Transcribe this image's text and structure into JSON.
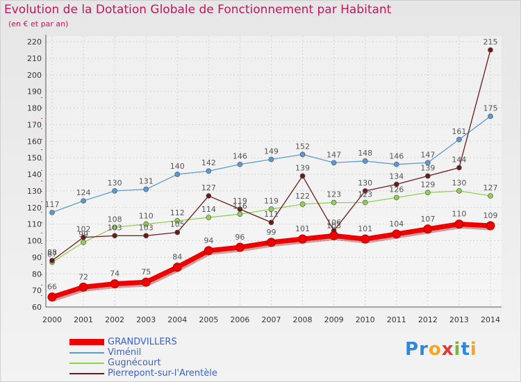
{
  "header": {
    "title": "Evolution de la Dotation Globale de Fonctionnement par Habitant",
    "subtitle": "(en € et par an)"
  },
  "brand": {
    "letters": [
      "P",
      "r",
      "o",
      "x",
      "i",
      "t",
      "i"
    ],
    "colors": [
      "#2e86de",
      "#2e86de",
      "#f5a623",
      "#e53935",
      "#7cb342",
      "#2e86de",
      "#f5a623"
    ]
  },
  "chart_data": {
    "type": "line",
    "x": [
      "2000",
      "2001",
      "2002",
      "2003",
      "2004",
      "2005",
      "2006",
      "2007",
      "2008",
      "2009",
      "2010",
      "2011",
      "2012",
      "2013",
      "2014"
    ],
    "ylim": [
      60,
      220
    ],
    "yticks": [
      60,
      70,
      80,
      90,
      100,
      110,
      120,
      130,
      140,
      150,
      160,
      170,
      180,
      190,
      200,
      210,
      220
    ],
    "grid": true,
    "legend_position": "bottom-left",
    "series": [
      {
        "name": "GRANDVILLERS",
        "color": "#ee0000",
        "thick": true,
        "values": [
          66,
          72,
          74,
          75,
          84,
          94,
          96,
          99,
          101,
          103,
          101,
          104,
          107,
          110,
          109
        ]
      },
      {
        "name": "Viménil",
        "color": "#5b9bd5",
        "thick": false,
        "values": [
          117,
          124,
          130,
          131,
          140,
          142,
          146,
          149,
          152,
          147,
          148,
          146,
          147,
          161,
          175
        ]
      },
      {
        "name": "Gugnécourt",
        "color": "#92d050",
        "thick": false,
        "values": [
          87,
          99,
          108,
          110,
          112,
          114,
          116,
          119,
          122,
          123,
          123,
          126,
          129,
          130,
          127
        ]
      },
      {
        "name": "Pierrepont-sur-l'Arentèle",
        "color": "#6b1a1a",
        "thick": false,
        "values": [
          88,
          102,
          103,
          103,
          105,
          127,
          119,
          111,
          139,
          106,
          130,
          134,
          139,
          144,
          215
        ]
      }
    ]
  }
}
